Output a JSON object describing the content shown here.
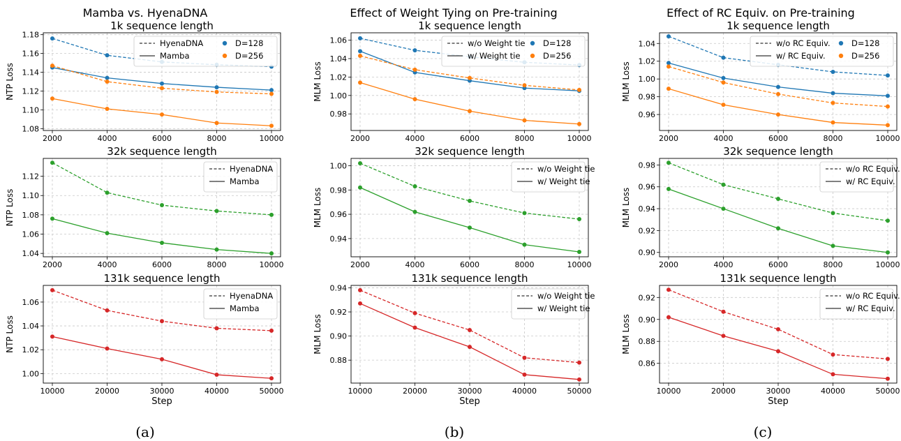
{
  "figure": {
    "column_titles": [
      "Mamba vs. HyenaDNA",
      "Effect of Weight Tying on Pre-training",
      "Effect of RC Equiv. on Pre-training"
    ],
    "sublabels": [
      "(a)",
      "(b)",
      "(c)"
    ]
  },
  "colors": {
    "d128": "#1f77b4",
    "d256": "#ff7f0e",
    "k32": "#2ca02c",
    "k131": "#d62728"
  },
  "chart_data": [
    {
      "type": "line",
      "title": "1k sequence length",
      "xlabel": "",
      "ylabel": "NTP Loss",
      "x": [
        2000,
        4000,
        6000,
        8000,
        10000
      ],
      "xticks": [
        "2000",
        "4000",
        "6000",
        "8000",
        "10000"
      ],
      "ylim": [
        1.078,
        1.182
      ],
      "yticks": [
        1.08,
        1.1,
        1.12,
        1.14,
        1.16,
        1.18
      ],
      "ytick_labels": [
        "1.08",
        "1.10",
        "1.12",
        "1.14",
        "1.16",
        "1.18"
      ],
      "series": [
        {
          "values": [
            1.176,
            1.158,
            1.151,
            1.148,
            1.146
          ],
          "color": "#1f77b4",
          "dash": true
        },
        {
          "values": [
            1.145,
            1.134,
            1.128,
            1.124,
            1.121
          ],
          "color": "#1f77b4",
          "dash": false
        },
        {
          "values": [
            1.147,
            1.13,
            1.123,
            1.119,
            1.117
          ],
          "color": "#ff7f0e",
          "dash": true
        },
        {
          "values": [
            1.112,
            1.101,
            1.095,
            1.086,
            1.083
          ],
          "color": "#ff7f0e",
          "dash": false
        }
      ],
      "legend": {
        "placement": "top-right",
        "style_entries": [
          "HyenaDNA",
          "Mamba"
        ],
        "color_entries": [
          "D=128",
          "D=256"
        ]
      }
    },
    {
      "type": "line",
      "title": "1k sequence length",
      "xlabel": "",
      "ylabel": "MLM Loss",
      "x": [
        2000,
        4000,
        6000,
        8000,
        10000
      ],
      "xticks": [
        "2000",
        "4000",
        "6000",
        "8000",
        "10000"
      ],
      "ylim": [
        0.962,
        1.068
      ],
      "yticks": [
        0.98,
        1.0,
        1.02,
        1.04,
        1.06
      ],
      "ytick_labels": [
        "0.98",
        "1.00",
        "1.02",
        "1.04",
        "1.06"
      ],
      "series": [
        {
          "values": [
            1.062,
            1.049,
            1.042,
            1.036,
            1.033
          ],
          "color": "#1f77b4",
          "dash": true
        },
        {
          "values": [
            1.048,
            1.025,
            1.016,
            1.008,
            1.005
          ],
          "color": "#1f77b4",
          "dash": false
        },
        {
          "values": [
            1.043,
            1.028,
            1.019,
            1.011,
            1.006
          ],
          "color": "#ff7f0e",
          "dash": true
        },
        {
          "values": [
            1.014,
            0.996,
            0.983,
            0.973,
            0.969
          ],
          "color": "#ff7f0e",
          "dash": false
        }
      ],
      "legend": {
        "placement": "top-right",
        "style_entries": [
          "w/o Weight tie",
          "w/ Weight tie"
        ],
        "color_entries": [
          "D=128",
          "D=256"
        ]
      }
    },
    {
      "type": "line",
      "title": "1k sequence length",
      "xlabel": "",
      "ylabel": "MLM Loss",
      "x": [
        2000,
        4000,
        6000,
        8000,
        10000
      ],
      "xticks": [
        "2000",
        "4000",
        "6000",
        "8000",
        "10000"
      ],
      "ylim": [
        0.942,
        1.052
      ],
      "yticks": [
        0.96,
        0.98,
        1.0,
        1.02,
        1.04
      ],
      "ytick_labels": [
        "0.96",
        "0.98",
        "1.00",
        "1.02",
        "1.04"
      ],
      "series": [
        {
          "values": [
            1.048,
            1.024,
            1.016,
            1.008,
            1.004
          ],
          "color": "#1f77b4",
          "dash": true
        },
        {
          "values": [
            1.018,
            1.001,
            0.991,
            0.984,
            0.981
          ],
          "color": "#1f77b4",
          "dash": false
        },
        {
          "values": [
            1.014,
            0.996,
            0.983,
            0.973,
            0.969
          ],
          "color": "#ff7f0e",
          "dash": true
        },
        {
          "values": [
            0.989,
            0.971,
            0.96,
            0.951,
            0.948
          ],
          "color": "#ff7f0e",
          "dash": false
        }
      ],
      "legend": {
        "placement": "top-right",
        "style_entries": [
          "w/o RC Equiv.",
          "w/ RC Equiv."
        ],
        "color_entries": [
          "D=128",
          "D=256"
        ]
      }
    },
    {
      "type": "line",
      "title": "32k sequence length",
      "xlabel": "",
      "ylabel": "NTP Loss",
      "x": [
        2000,
        4000,
        6000,
        8000,
        10000
      ],
      "xticks": [
        "2000",
        "4000",
        "6000",
        "8000",
        "10000"
      ],
      "ylim": [
        1.0365,
        1.1385
      ],
      "yticks": [
        1.04,
        1.06,
        1.08,
        1.1,
        1.12
      ],
      "ytick_labels": [
        "1.04",
        "1.06",
        "1.08",
        "1.10",
        "1.12"
      ],
      "series": [
        {
          "values": [
            1.134,
            1.103,
            1.09,
            1.084,
            1.08
          ],
          "color": "#2ca02c",
          "dash": true
        },
        {
          "values": [
            1.076,
            1.061,
            1.051,
            1.044,
            1.04
          ],
          "color": "#2ca02c",
          "dash": false
        }
      ],
      "legend": {
        "placement": "top-right",
        "style_entries": [
          "HyenaDNA",
          "Mamba"
        ],
        "color_entries": []
      }
    },
    {
      "type": "line",
      "title": "32k sequence length",
      "xlabel": "",
      "ylabel": "MLM Loss",
      "x": [
        2000,
        4000,
        6000,
        8000,
        10000
      ],
      "xticks": [
        "2000",
        "4000",
        "6000",
        "8000",
        "10000"
      ],
      "ylim": [
        0.925,
        1.006
      ],
      "yticks": [
        0.94,
        0.96,
        0.98,
        1.0
      ],
      "ytick_labels": [
        "0.94",
        "0.96",
        "0.98",
        "1.00"
      ],
      "series": [
        {
          "values": [
            1.002,
            0.983,
            0.971,
            0.961,
            0.956
          ],
          "color": "#2ca02c",
          "dash": true
        },
        {
          "values": [
            0.982,
            0.962,
            0.949,
            0.935,
            0.929
          ],
          "color": "#2ca02c",
          "dash": false
        }
      ],
      "legend": {
        "placement": "top-right",
        "style_entries": [
          "w/o Weight tie",
          "w/ Weight tie"
        ],
        "color_entries": []
      }
    },
    {
      "type": "line",
      "title": "32k sequence length",
      "xlabel": "",
      "ylabel": "MLM Loss",
      "x": [
        2000,
        4000,
        6000,
        8000,
        10000
      ],
      "xticks": [
        "2000",
        "4000",
        "6000",
        "8000",
        "10000"
      ],
      "ylim": [
        0.896,
        0.986
      ],
      "yticks": [
        0.9,
        0.92,
        0.94,
        0.96,
        0.98
      ],
      "ytick_labels": [
        "0.90",
        "0.92",
        "0.94",
        "0.96",
        "0.98"
      ],
      "series": [
        {
          "values": [
            0.982,
            0.962,
            0.949,
            0.936,
            0.929
          ],
          "color": "#2ca02c",
          "dash": true
        },
        {
          "values": [
            0.958,
            0.94,
            0.922,
            0.906,
            0.9
          ],
          "color": "#2ca02c",
          "dash": false
        }
      ],
      "legend": {
        "placement": "top-right",
        "style_entries": [
          "w/o RC Equiv.",
          "w/ RC Equiv."
        ],
        "color_entries": []
      }
    },
    {
      "type": "line",
      "title": "131k sequence length",
      "xlabel": "Step",
      "ylabel": "NTP Loss",
      "x": [
        10000,
        20000,
        30000,
        40000,
        50000
      ],
      "xticks": [
        "10000",
        "20000",
        "30000",
        "40000",
        "50000"
      ],
      "ylim": [
        0.992,
        1.074
      ],
      "yticks": [
        1.0,
        1.02,
        1.04,
        1.06
      ],
      "ytick_labels": [
        "1.00",
        "1.02",
        "1.04",
        "1.06"
      ],
      "series": [
        {
          "values": [
            1.07,
            1.053,
            1.044,
            1.038,
            1.036
          ],
          "color": "#d62728",
          "dash": true
        },
        {
          "values": [
            1.031,
            1.021,
            1.012,
            0.999,
            0.996
          ],
          "color": "#d62728",
          "dash": false
        }
      ],
      "legend": {
        "placement": "top-right",
        "style_entries": [
          "HyenaDNA",
          "Mamba"
        ],
        "color_entries": []
      }
    },
    {
      "type": "line",
      "title": "131k sequence length",
      "xlabel": "Step",
      "ylabel": "MLM Loss",
      "x": [
        10000,
        20000,
        30000,
        40000,
        50000
      ],
      "xticks": [
        "10000",
        "20000",
        "30000",
        "40000",
        "50000"
      ],
      "ylim": [
        0.861,
        0.942
      ],
      "yticks": [
        0.88,
        0.9,
        0.92,
        0.94
      ],
      "ytick_labels": [
        "0.88",
        "0.90",
        "0.92",
        "0.94"
      ],
      "series": [
        {
          "values": [
            0.938,
            0.919,
            0.905,
            0.882,
            0.878
          ],
          "color": "#d62728",
          "dash": true
        },
        {
          "values": [
            0.927,
            0.907,
            0.891,
            0.868,
            0.864
          ],
          "color": "#d62728",
          "dash": false
        }
      ],
      "legend": {
        "placement": "top-right",
        "style_entries": [
          "w/o Weight tie",
          "w/ Weight tie"
        ],
        "color_entries": []
      }
    },
    {
      "type": "line",
      "title": "131k sequence length",
      "xlabel": "Step",
      "ylabel": "MLM Loss",
      "x": [
        10000,
        20000,
        30000,
        40000,
        50000
      ],
      "xticks": [
        "10000",
        "20000",
        "30000",
        "40000",
        "50000"
      ],
      "ylim": [
        0.842,
        0.931
      ],
      "yticks": [
        0.86,
        0.88,
        0.9,
        0.92
      ],
      "ytick_labels": [
        "0.86",
        "0.88",
        "0.90",
        "0.92"
      ],
      "series": [
        {
          "values": [
            0.927,
            0.907,
            0.891,
            0.868,
            0.864
          ],
          "color": "#d62728",
          "dash": true
        },
        {
          "values": [
            0.902,
            0.885,
            0.871,
            0.85,
            0.846
          ],
          "color": "#d62728",
          "dash": false
        }
      ],
      "legend": {
        "placement": "top-right",
        "style_entries": [
          "w/o RC Equiv.",
          "w/ RC Equiv."
        ],
        "color_entries": []
      }
    }
  ]
}
